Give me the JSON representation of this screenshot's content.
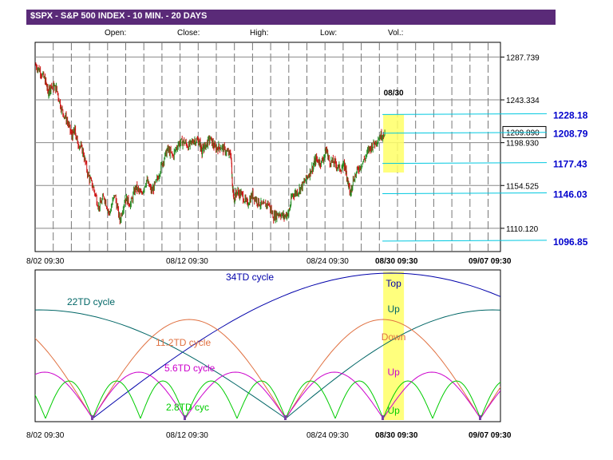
{
  "header": {
    "title": "$SPX - S&P 500 INDEX - 10 MIN. - 20 DAYS",
    "open_label": "Open:",
    "close_label": "Close:",
    "high_label": "High:",
    "low_label": "Low:",
    "vol_label": "Vol.:"
  },
  "colors": {
    "title_bar": "#5a2a78",
    "candle_up": "#228b22",
    "candle_down": "#cc1111",
    "projection": "#00c8e0",
    "highlight": "#ffff66",
    "label_blue": "#0000cc"
  },
  "chart_data": [
    {
      "type": "candlestick",
      "title": "$SPX - S&P 500 INDEX - 10 MIN. - 20 DAYS",
      "x_tick_labels": [
        "8/02 09:30",
        "08/12 09:30",
        "08/24 09:30",
        "08/30 09:30",
        "09/07 09:30"
      ],
      "y_tick_labels": [
        "1287.739",
        "1243.334",
        "1198.930",
        "1154.525",
        "1110.120"
      ],
      "y_tick_values": [
        1287.739,
        1243.334,
        1198.93,
        1154.525,
        1110.12
      ],
      "ylim": [
        1086.0,
        1303.0
      ],
      "last_price_label": "1209.890",
      "last_price": 1209.89,
      "marker_label": "08/30",
      "grid": true,
      "price_path": [
        [
          0.0,
          1280
        ],
        [
          0.02,
          1273
        ],
        [
          0.04,
          1262
        ],
        [
          0.05,
          1250
        ],
        [
          0.06,
          1258
        ],
        [
          0.08,
          1255
        ],
        [
          0.1,
          1233
        ],
        [
          0.12,
          1222
        ],
        [
          0.14,
          1205
        ],
        [
          0.15,
          1212
        ],
        [
          0.16,
          1200
        ],
        [
          0.18,
          1190
        ],
        [
          0.2,
          1165
        ],
        [
          0.22,
          1152
        ],
        [
          0.24,
          1132
        ],
        [
          0.26,
          1143
        ],
        [
          0.28,
          1125
        ],
        [
          0.3,
          1145
        ],
        [
          0.32,
          1118
        ],
        [
          0.34,
          1142
        ],
        [
          0.36,
          1135
        ],
        [
          0.38,
          1153
        ],
        [
          0.4,
          1145
        ],
        [
          0.42,
          1160
        ],
        [
          0.44,
          1148
        ],
        [
          0.46,
          1160
        ],
        [
          0.48,
          1178
        ],
        [
          0.5,
          1192
        ],
        [
          0.52,
          1185
        ],
        [
          0.54,
          1198
        ],
        [
          0.56,
          1200
        ],
        [
          0.58,
          1195
        ],
        [
          0.6,
          1202
        ],
        [
          0.62,
          1200
        ],
        [
          0.63,
          1190
        ],
        [
          0.64,
          1195
        ],
        [
          0.66,
          1203
        ],
        [
          0.68,
          1193
        ],
        [
          0.7,
          1195
        ],
        [
          0.72,
          1190
        ],
        [
          0.74,
          1185
        ],
        [
          0.745,
          1155
        ],
        [
          0.75,
          1140
        ],
        [
          0.76,
          1148
        ],
        [
          0.78,
          1145
        ],
        [
          0.8,
          1135
        ],
        [
          0.82,
          1145
        ],
        [
          0.84,
          1138
        ],
        [
          0.86,
          1133
        ],
        [
          0.88,
          1136
        ],
        [
          0.9,
          1122
        ],
        [
          0.92,
          1126
        ],
        [
          0.94,
          1122
        ],
        [
          0.96,
          1128
        ],
        [
          0.97,
          1145
        ],
        [
          0.99,
          1148
        ],
        [
          1.01,
          1155
        ],
        [
          1.03,
          1165
        ],
        [
          1.05,
          1175
        ],
        [
          1.06,
          1182
        ],
        [
          1.08,
          1178
        ],
        [
          1.1,
          1192
        ],
        [
          1.11,
          1180
        ],
        [
          1.13,
          1178
        ],
        [
          1.15,
          1172
        ],
        [
          1.17,
          1175
        ],
        [
          1.18,
          1160
        ],
        [
          1.19,
          1145
        ],
        [
          1.2,
          1160
        ],
        [
          1.22,
          1172
        ],
        [
          1.24,
          1180
        ],
        [
          1.26,
          1192
        ],
        [
          1.28,
          1198
        ],
        [
          1.3,
          1205
        ],
        [
          1.32,
          1210
        ]
      ]
    },
    {
      "type": "line",
      "x_tick_labels": [
        "8/02 09:30",
        "08/12 09:30",
        "08/24 09:30",
        "08/30 09:30",
        "09/07 09:30"
      ],
      "series": [
        {
          "name": "34TD cycle",
          "color": "#0000aa"
        },
        {
          "name": "22TD cycle",
          "color": "#006666"
        },
        {
          "name": "11.2TD cycle",
          "color": "#e07040"
        },
        {
          "name": "5.6TD cycle",
          "color": "#cc00cc"
        },
        {
          "name": "2.8TD cyc",
          "color": "#00cc00"
        }
      ],
      "phase_labels": [
        "Top",
        "Up",
        "Down",
        "Up",
        "Up"
      ]
    }
  ],
  "projections": [
    {
      "label": "1228.18",
      "value": 1228.18
    },
    {
      "label": "1208.79",
      "value": 1208.79
    },
    {
      "label": "1177.43",
      "value": 1177.43
    },
    {
      "label": "1146.03",
      "value": 1146.03
    },
    {
      "label": "1096.85",
      "value": 1096.85
    }
  ]
}
